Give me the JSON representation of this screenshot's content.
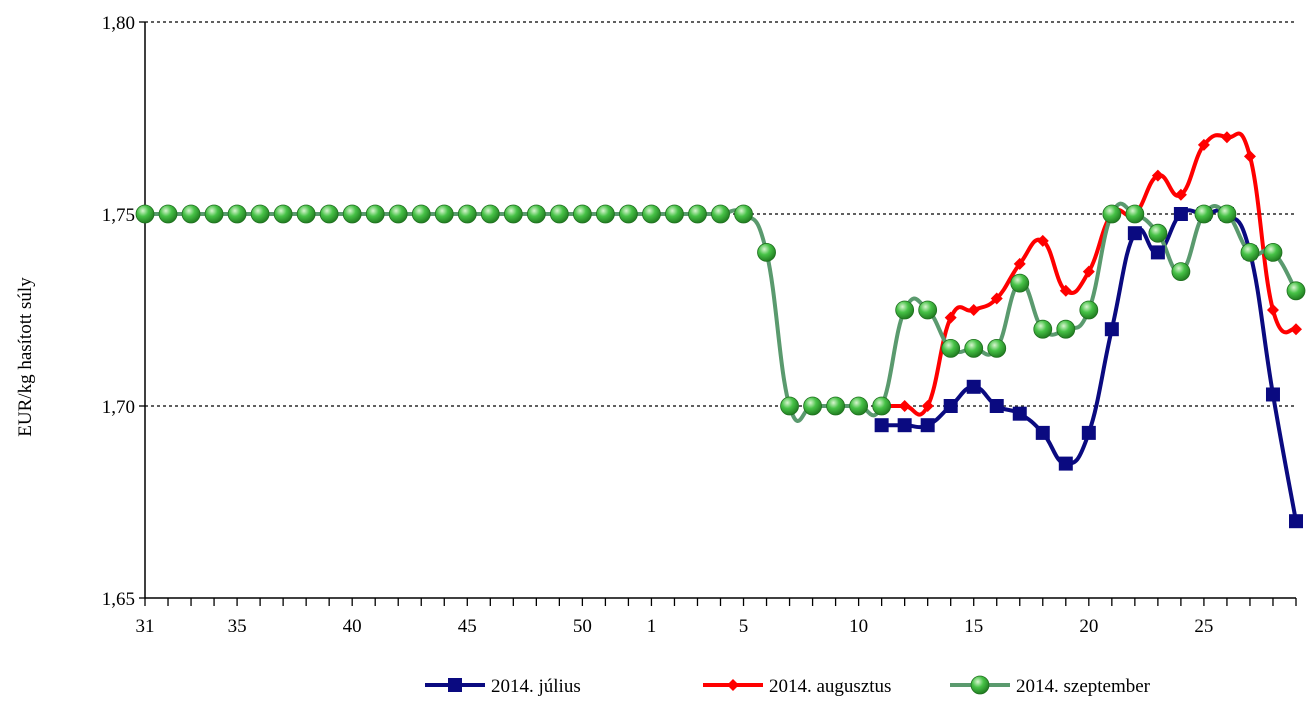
{
  "chart_data": {
    "type": "line",
    "title": "",
    "xlabel": "",
    "ylabel": "EUR/kg hasított súly",
    "ylim": [
      1.65,
      1.8
    ],
    "yticks": [
      "1,65",
      "1,70",
      "1,75",
      "1,80"
    ],
    "ytick_values": [
      1.65,
      1.7,
      1.75,
      1.8
    ],
    "grid": "horizontal dotted at 1,70 1,75 1,80",
    "legend_position": "bottom",
    "x_tick_labels": [
      {
        "label": "31",
        "index": 0
      },
      {
        "label": "35",
        "index": 4
      },
      {
        "label": "40",
        "index": 9
      },
      {
        "label": "45",
        "index": 14
      },
      {
        "label": "50",
        "index": 19
      },
      {
        "label": "1",
        "index": 22
      },
      {
        "label": "5",
        "index": 26
      },
      {
        "label": "10",
        "index": 31
      },
      {
        "label": "15",
        "index": 36
      },
      {
        "label": "20",
        "index": 41
      },
      {
        "label": "25",
        "index": 46
      }
    ],
    "x_count": 51,
    "colors": {
      "julius": "#0a0a80",
      "augusztus": "#ff0000",
      "szeptember": "#5a9a6e",
      "marker_green": "#2eaa2e"
    },
    "series": [
      {
        "name": "2014. július",
        "marker": "square",
        "start_index": 32,
        "values": [
          1.695,
          1.695,
          1.695,
          1.7,
          1.705,
          1.7,
          1.698,
          1.693,
          1.685,
          1.693,
          1.72,
          1.745,
          1.74,
          1.75,
          1.75,
          1.75,
          1.74,
          1.703,
          1.67
        ]
      },
      {
        "name": "2014. augusztus",
        "marker": "diamond",
        "start_index": 32,
        "values": [
          1.7,
          1.7,
          1.7,
          1.723,
          1.725,
          1.728,
          1.737,
          1.743,
          1.73,
          1.735,
          1.75,
          1.75,
          1.76,
          1.755,
          1.768,
          1.77,
          1.765,
          1.725,
          1.72
        ]
      },
      {
        "name": "2014. szeptember",
        "marker": "circle",
        "start_index": 0,
        "values": [
          1.75,
          1.75,
          1.75,
          1.75,
          1.75,
          1.75,
          1.75,
          1.75,
          1.75,
          1.75,
          1.75,
          1.75,
          1.75,
          1.75,
          1.75,
          1.75,
          1.75,
          1.75,
          1.75,
          1.75,
          1.75,
          1.75,
          1.75,
          1.75,
          1.75,
          1.75,
          1.75,
          1.74,
          1.7,
          1.7,
          1.7,
          1.7,
          1.7,
          1.725,
          1.725,
          1.715,
          1.715,
          1.715,
          1.732,
          1.72,
          1.72,
          1.725,
          1.75,
          1.75,
          1.745,
          1.735,
          1.75,
          1.75,
          1.74,
          1.74,
          1.73
        ]
      }
    ]
  }
}
